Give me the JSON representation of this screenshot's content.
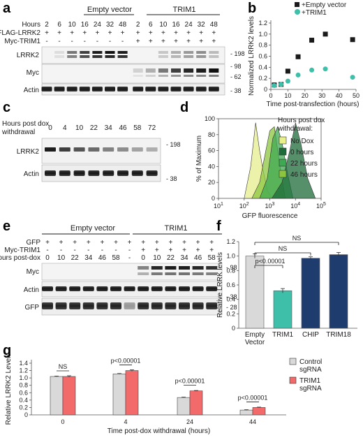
{
  "panels": {
    "a": {
      "label": "a",
      "groups": [
        "Empty vector",
        "TRIM1"
      ],
      "row_labels": [
        "Hours",
        "FLAG-LRRK2",
        "Myc-TRIM1"
      ],
      "hours": [
        "2",
        "6",
        "10",
        "16",
        "24",
        "32",
        "48",
        "2",
        "6",
        "10",
        "16",
        "24",
        "32",
        "48"
      ],
      "flag_lrrk2": [
        "+",
        "+",
        "+",
        "+",
        "+",
        "+",
        "+",
        "+",
        "+",
        "+",
        "+",
        "+",
        "+",
        "+"
      ],
      "myc_trim1": [
        "-",
        "-",
        "-",
        "-",
        "-",
        "-",
        "-",
        "+",
        "+",
        "+",
        "+",
        "+",
        "+",
        "+"
      ],
      "blots": [
        "LRRK2",
        "Myc",
        "Actin"
      ],
      "markers": [
        "198",
        "98",
        "62",
        "38"
      ]
    },
    "b": {
      "label": "b",
      "legend": [
        "+Empty  vector",
        "+TRIM1"
      ],
      "colors": {
        "empty": "#1a1a1a",
        "trim1": "#3dbfaa"
      }
    },
    "c": {
      "label": "c",
      "row_label_1": "Hours post dox",
      "row_label_2": "withdrawal",
      "hours": [
        "0",
        "4",
        "10",
        "22",
        "34",
        "46",
        "58",
        "72"
      ],
      "blots": [
        "LRRK2",
        "Actin"
      ],
      "markers": [
        "198",
        "38"
      ]
    },
    "d": {
      "label": "d",
      "legend_title_1": "Hours post dox",
      "legend_title_2": "withdrawal:",
      "legend": [
        "No Dox",
        "0 hours",
        "22 hours",
        "46 hours"
      ],
      "legend_colors": [
        "#e8f08a",
        "#1e6b3a",
        "#3fa852",
        "#8cc63f"
      ]
    },
    "e": {
      "label": "e",
      "groups": [
        "Empty vector",
        "TRIM1"
      ],
      "row_labels": [
        "GFP",
        "Myc-TRIM1",
        "Hours post-dox"
      ],
      "gfp": [
        "+",
        "+",
        "+",
        "+",
        "+",
        "+",
        "+",
        "+",
        "+",
        "+",
        "+",
        "+",
        "+"
      ],
      "myc_trim1": [
        "-",
        "-",
        "-",
        "-",
        "-",
        "-",
        "-",
        "+",
        "+",
        "+",
        "+",
        "+",
        "+"
      ],
      "hours": [
        "0",
        "10",
        "22",
        "34",
        "46",
        "58",
        "-",
        "0",
        "10",
        "22",
        "34",
        "46",
        "58"
      ],
      "blots": [
        "Myc",
        "Actin",
        "GFP"
      ],
      "markers": [
        "98",
        "38",
        "28"
      ]
    },
    "f": {
      "label": "f",
      "sig": [
        "p<0.00001",
        "NS",
        "NS"
      ],
      "bar_colors": [
        "#d9d9d9",
        "#3dbfaa",
        "#1f3c6e",
        "#1f3c6e"
      ]
    },
    "g": {
      "label": "g",
      "legend": [
        "Control\nsgRNA",
        "TRIM1\nsgRNA"
      ],
      "sig": [
        "NS",
        "p<0.00001",
        "p<0.00001",
        "p<0.00001"
      ],
      "colors": {
        "control": "#d9d9d9",
        "trim1": "#f26a6a"
      }
    }
  },
  "chart_data": [
    {
      "type": "scatter",
      "panel": "b",
      "xlabel": "Time post-transfection (hours)",
      "ylabel": "Normalized LRRK2 levels",
      "xlim": [
        0,
        50
      ],
      "ylim": [
        0,
        1.2
      ],
      "xticks": [
        "0",
        "10",
        "20",
        "30",
        "40",
        "50"
      ],
      "yticks": [
        "0",
        "0.2",
        "0.4",
        "0.6",
        "0.8",
        "1.0",
        "1.2"
      ],
      "series": [
        {
          "name": "+Empty  vector",
          "x": [
            2,
            6,
            10,
            16,
            24,
            32,
            48
          ],
          "y": [
            0.08,
            0.09,
            0.33,
            0.59,
            0.89,
            1.0,
            0.9
          ]
        },
        {
          "name": "+TRIM1",
          "x": [
            2,
            6,
            10,
            16,
            24,
            32,
            48
          ],
          "y": [
            0.07,
            0.09,
            0.15,
            0.26,
            0.35,
            0.37,
            0.22
          ]
        }
      ]
    },
    {
      "type": "area",
      "panel": "d",
      "xlabel": "GFP fluorescence",
      "ylabel": "% of Maximum",
      "xscale": "log",
      "xlim": [
        10,
        100000
      ],
      "ylim": [
        0,
        100
      ],
      "yticks": [
        "0",
        "20",
        "40",
        "60",
        "80",
        "100"
      ],
      "xticks": [
        "10",
        "100",
        "1000",
        "10000",
        "100000"
      ],
      "series": [
        {
          "name": "No Dox",
          "x": [
            100,
            180,
            280,
            400,
            550,
            800,
            1200
          ],
          "y": [
            0,
            40,
            95,
            60,
            35,
            10,
            0
          ]
        },
        {
          "name": "46 hours",
          "x": [
            200,
            400,
            700,
            1000,
            1500,
            2500,
            4000
          ],
          "y": [
            0,
            20,
            60,
            85,
            90,
            40,
            0
          ]
        },
        {
          "name": "22 hours",
          "x": [
            400,
            800,
            1300,
            2000,
            3000,
            5000,
            8000
          ],
          "y": [
            0,
            25,
            75,
            90,
            70,
            30,
            0
          ]
        },
        {
          "name": "0 hours",
          "x": [
            1200,
            3000,
            6000,
            10000,
            16000,
            30000,
            60000
          ],
          "y": [
            0,
            20,
            60,
            95,
            70,
            25,
            0
          ]
        }
      ]
    },
    {
      "type": "bar",
      "panel": "f",
      "ylabel": "Relative LRRK levels",
      "ylim": [
        0,
        1.2
      ],
      "yticks": [
        "0",
        "0.2",
        "0.4",
        "0.6",
        "0.8",
        "1.0",
        "1.2"
      ],
      "categories": [
        "Empty\nVector",
        "TRIM1",
        "CHIP",
        "TRIM18"
      ],
      "values": [
        1.0,
        0.52,
        0.97,
        1.02
      ],
      "errors": [
        0.03,
        0.03,
        0.02,
        0.03
      ]
    },
    {
      "type": "bar",
      "panel": "g",
      "xlabel": "Time post-dox withdrawal (hours)",
      "ylabel": "Relative LRRK2 Levels",
      "ylim": [
        0,
        1.4
      ],
      "yticks": [
        "0",
        "0.2",
        "0.4",
        "0.6",
        "0.8",
        "1.0",
        "1.2",
        "1.4"
      ],
      "categories": [
        "0",
        "4",
        "24",
        "44"
      ],
      "series": [
        {
          "name": "Control\nsgRNA",
          "values": [
            1.04,
            1.11,
            0.47,
            0.13
          ],
          "errors": [
            0.01,
            0.01,
            0.01,
            0.01
          ]
        },
        {
          "name": "TRIM1\nsgRNA",
          "values": [
            1.04,
            1.2,
            0.65,
            0.2
          ],
          "errors": [
            0.02,
            0.02,
            0.01,
            0.01
          ]
        }
      ]
    }
  ]
}
